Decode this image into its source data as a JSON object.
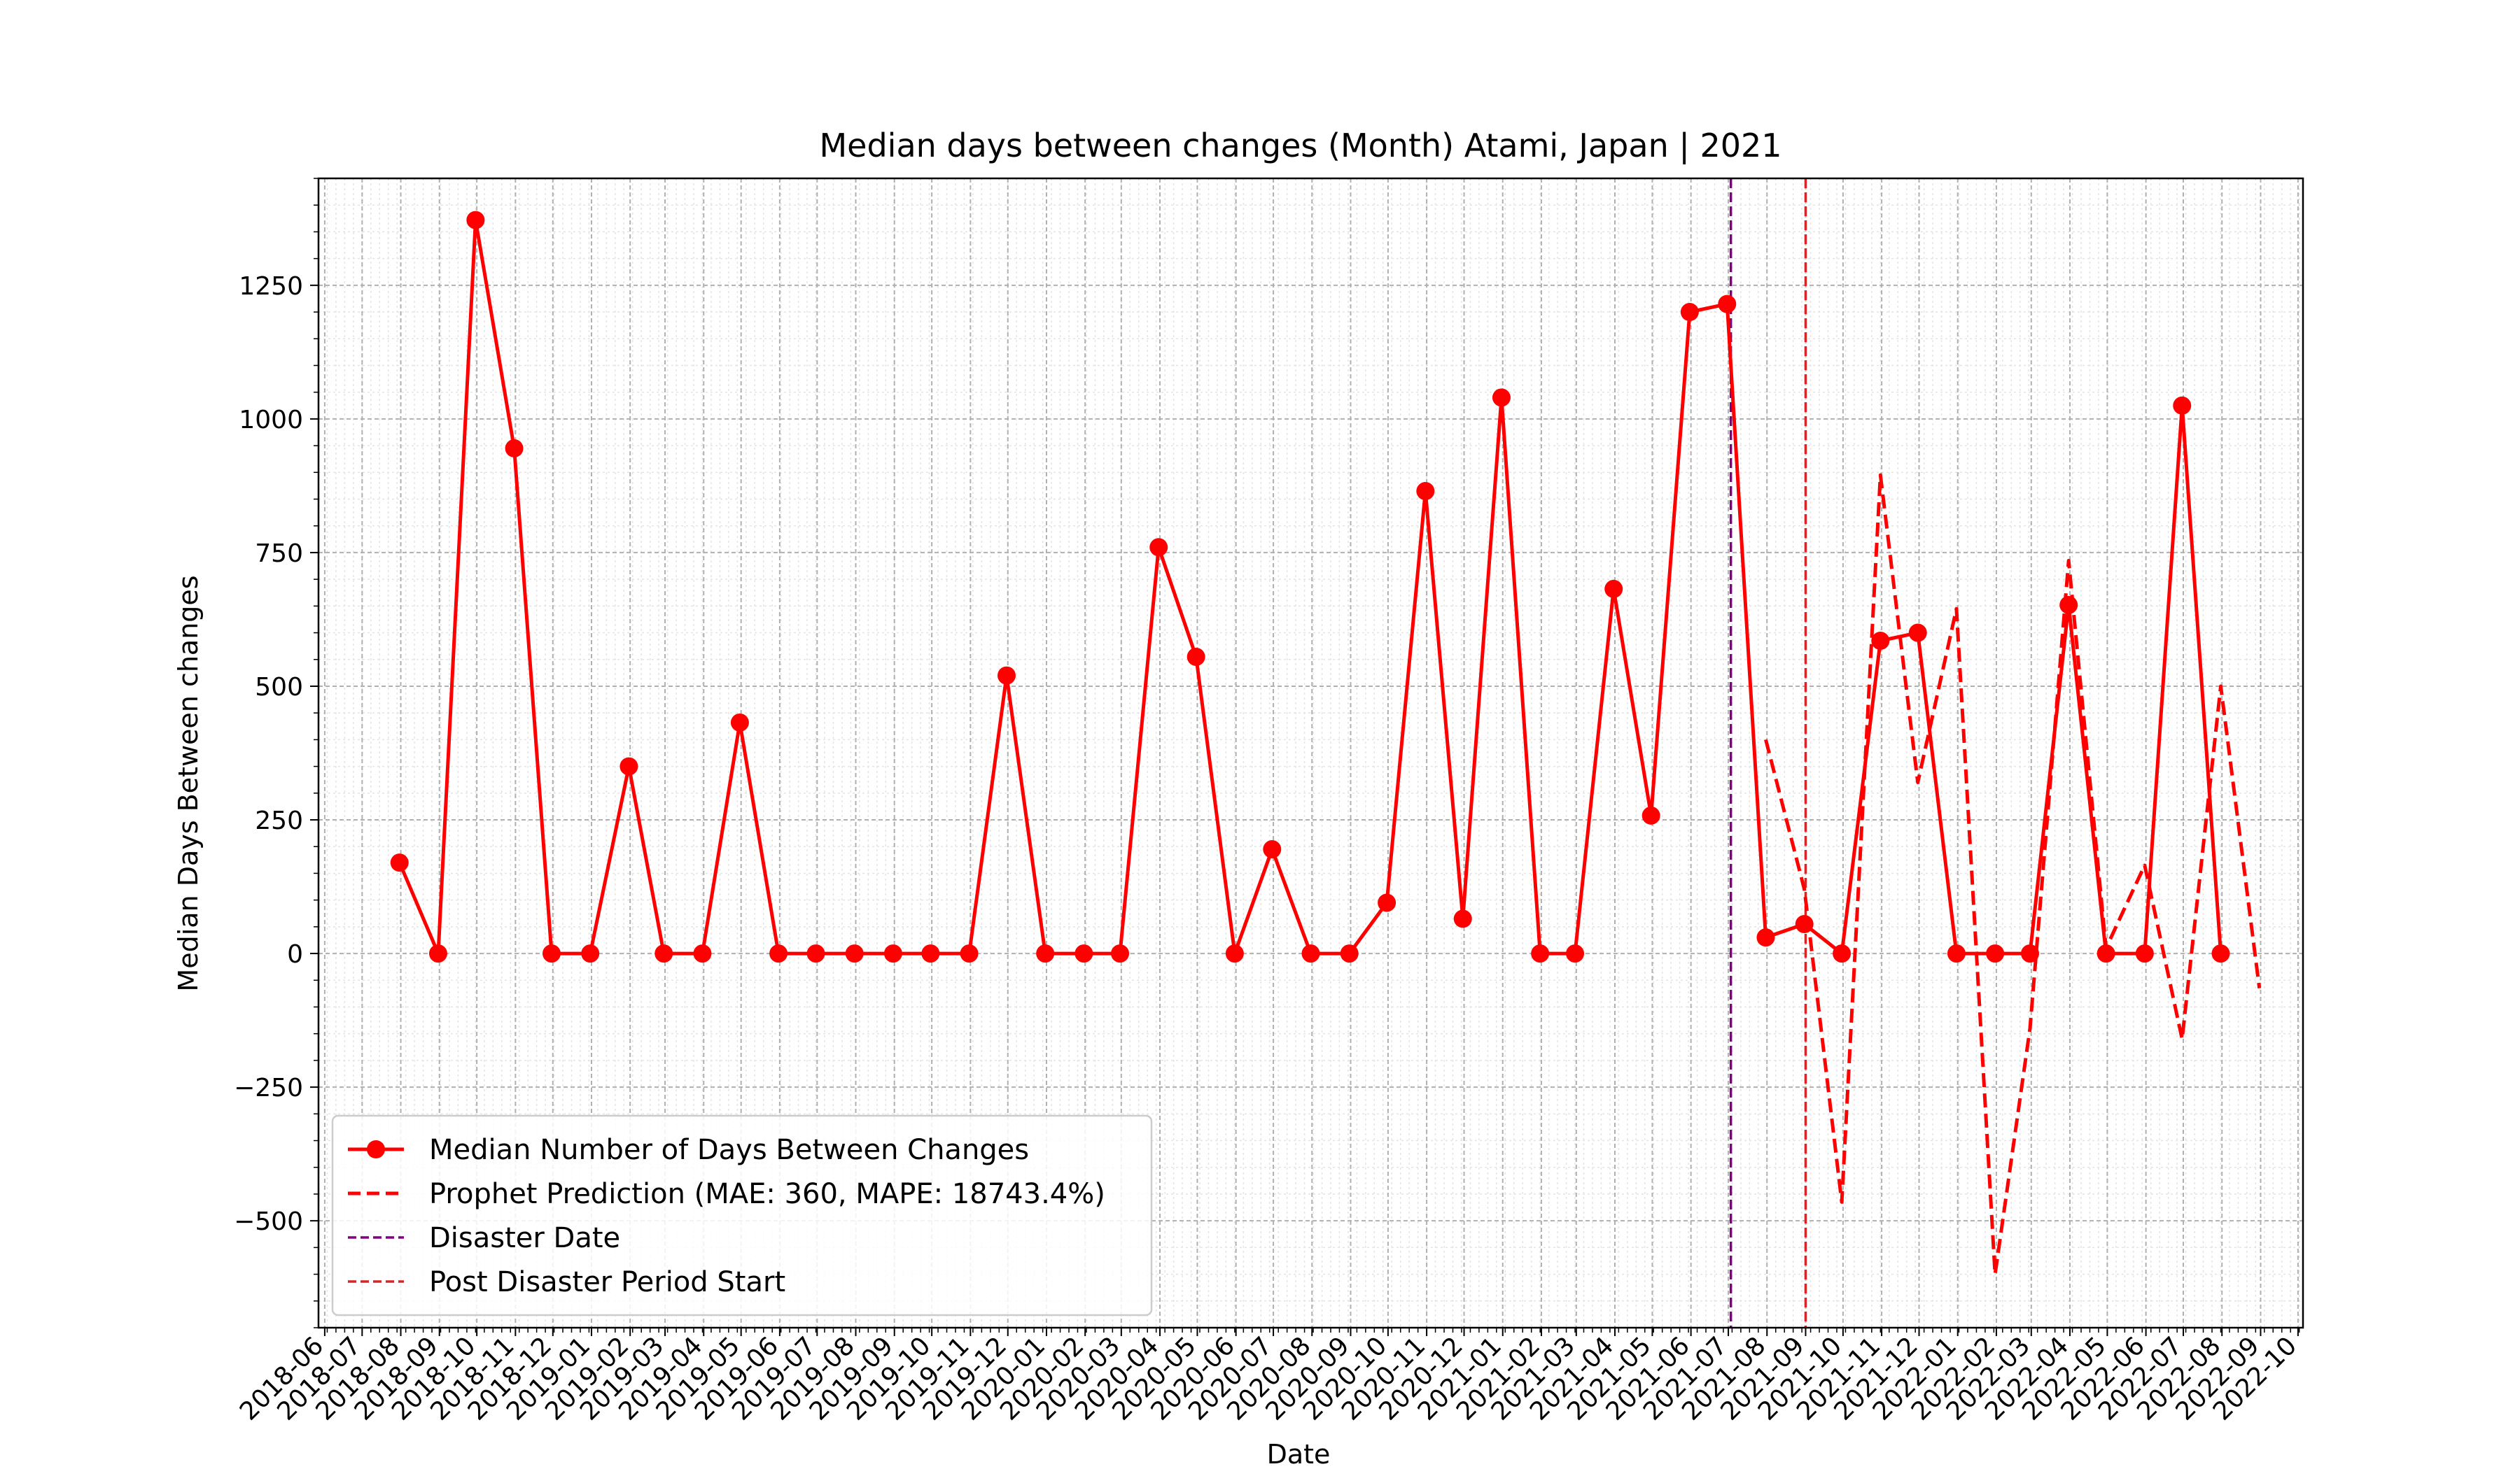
{
  "chart_data": {
    "type": "line",
    "title": "Median days between changes (Month) Atami, Japan | 2021",
    "xlabel": "Date",
    "ylabel": "Median Days Between changes",
    "ylim": [
      -700,
      1450
    ],
    "xlim": [
      "2018-06",
      "2022-10"
    ],
    "grid": true,
    "legend_position": "lower-left",
    "y_ticks": [
      -500,
      -250,
      0,
      250,
      500,
      750,
      1000,
      1250
    ],
    "x_ticks": [
      "2018-06",
      "2018-07",
      "2018-08",
      "2018-09",
      "2018-10",
      "2018-11",
      "2018-12",
      "2019-01",
      "2019-02",
      "2019-03",
      "2019-04",
      "2019-05",
      "2019-06",
      "2019-07",
      "2019-08",
      "2019-09",
      "2019-10",
      "2019-11",
      "2019-12",
      "2020-01",
      "2020-02",
      "2020-03",
      "2020-04",
      "2020-05",
      "2020-06",
      "2020-07",
      "2020-08",
      "2020-09",
      "2020-10",
      "2020-11",
      "2020-12",
      "2021-01",
      "2021-02",
      "2021-03",
      "2021-04",
      "2021-05",
      "2021-06",
      "2021-07",
      "2021-08",
      "2021-09",
      "2021-10",
      "2021-11",
      "2021-12",
      "2022-01",
      "2022-02",
      "2022-03",
      "2022-04",
      "2022-05",
      "2022-06",
      "2022-07",
      "2022-08",
      "2022-09",
      "2022-10"
    ],
    "series": [
      {
        "name": "Median Number of Days Between Changes",
        "style": "solid-marker",
        "color": "#ff0000",
        "x": [
          "2018-07-31",
          "2018-08-31",
          "2018-09-30",
          "2018-10-31",
          "2018-11-30",
          "2018-12-31",
          "2019-01-31",
          "2019-02-28",
          "2019-03-31",
          "2019-04-30",
          "2019-05-31",
          "2019-06-30",
          "2019-07-31",
          "2019-08-31",
          "2019-09-30",
          "2019-10-31",
          "2019-11-30",
          "2019-12-31",
          "2020-01-31",
          "2020-02-29",
          "2020-03-31",
          "2020-04-30",
          "2020-05-31",
          "2020-06-30",
          "2020-07-31",
          "2020-08-31",
          "2020-09-30",
          "2020-10-31",
          "2020-11-30",
          "2020-12-31",
          "2021-01-31",
          "2021-02-28",
          "2021-03-31",
          "2021-04-30",
          "2021-05-31",
          "2021-06-30",
          "2021-07-31",
          "2021-08-31",
          "2021-09-30",
          "2021-10-31",
          "2021-11-30",
          "2021-12-31",
          "2022-01-31",
          "2022-02-28",
          "2022-03-31",
          "2022-04-30",
          "2022-05-31",
          "2022-06-30",
          "2022-07-31"
        ],
        "values": [
          170,
          0,
          1372,
          945,
          0,
          0,
          350,
          0,
          0,
          432,
          0,
          0,
          0,
          0,
          0,
          0,
          520,
          0,
          0,
          0,
          760,
          555,
          0,
          195,
          0,
          0,
          95,
          865,
          65,
          1040,
          0,
          0,
          682,
          258,
          1200,
          1215,
          30,
          55,
          0,
          585,
          600,
          0,
          0,
          0,
          652,
          0,
          0,
          1025,
          0
        ]
      },
      {
        "name": "Prophet Prediction (MAE: 360, MAPE: 18743.4%)",
        "style": "dashed",
        "color": "#ff0000",
        "x": [
          "2021-07-31",
          "2021-08-31",
          "2021-09-30",
          "2021-10-31",
          "2021-11-30",
          "2021-12-31",
          "2022-01-31",
          "2022-02-28",
          "2022-03-31",
          "2022-04-30",
          "2022-05-31",
          "2022-06-30",
          "2022-07-31",
          "2022-08-31"
        ],
        "values": [
          400,
          120,
          -465,
          895,
          320,
          645,
          -600,
          -140,
          735,
          10,
          165,
          -160,
          500,
          -65
        ]
      }
    ],
    "vlines": [
      {
        "name": "Disaster Date",
        "x": "2021-07-03",
        "color": "#800080"
      },
      {
        "name": "Post Disaster Period Start",
        "x": "2021-09-01",
        "color": "#d62728"
      }
    ]
  }
}
